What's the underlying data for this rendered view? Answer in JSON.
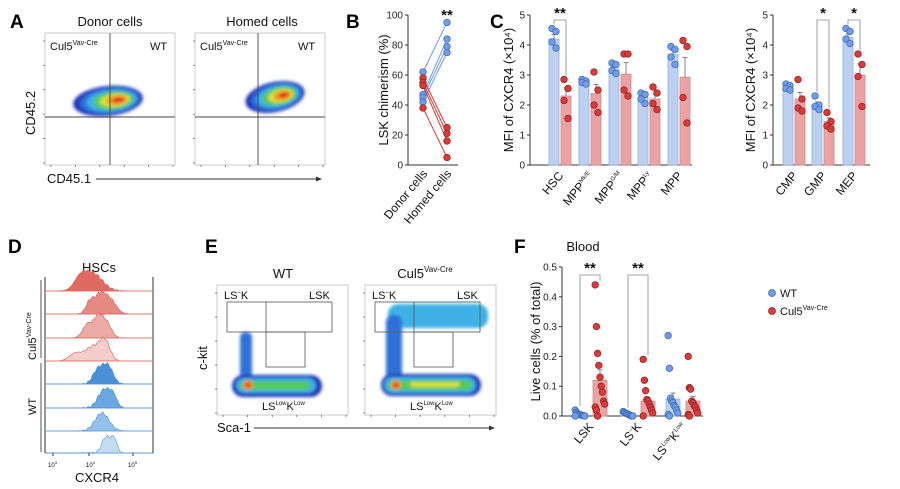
{
  "panel_labels": [
    "A",
    "B",
    "C",
    "D",
    "E",
    "F"
  ],
  "colors": {
    "wt_point": "#6f9de8",
    "wt_bar": "#bcd0f2",
    "ko_point": "#d93a3a",
    "ko_bar": "#eaa3a3"
  },
  "panel_a": {
    "titles": [
      "Donor cells",
      "Homed cells"
    ],
    "quadrant_left": {
      "base": "Cul5",
      "sup": "Vav-Cre"
    },
    "quadrant_right": "WT",
    "xlabel": "CD45.1",
    "ylabel": "CD45.2"
  },
  "panel_d": {
    "title": "HSCs",
    "group_ko": {
      "base": "Cul5",
      "sup": "Vav-Cre"
    },
    "group_wt": "WT",
    "xticks": [
      {
        "base": "10",
        "sup": "3"
      },
      {
        "base": "10",
        "sup": "4"
      },
      {
        "base": "10",
        "sup": "5"
      }
    ],
    "xlabel": "CXCR4"
  },
  "panel_e": {
    "titles": [
      {
        "base": "WT",
        "sup": ""
      },
      {
        "base": "Cul5",
        "sup": "Vav-Cre"
      }
    ],
    "gate_lsnk": {
      "base": "LS",
      "sup": "–",
      "after": "K"
    },
    "gate_lsk": "LSK",
    "gate_low": {
      "a": "LS",
      "sa": "Low",
      "b": "K",
      "sb": "Low"
    },
    "xlabel": "Sca-1",
    "ylabel": "c-kit"
  },
  "legend": {
    "wt": "WT",
    "ko": {
      "base": "Cul5",
      "sup": "Vav-Cre"
    }
  },
  "chart_data": [
    {
      "id": "B",
      "type": "scatter-paired",
      "ylabel": "LSK chimerism (%)",
      "ylim": [
        0,
        100
      ],
      "yticks": [
        0,
        20,
        40,
        60,
        80,
        100
      ],
      "categories": [
        "Donor cells",
        "Homed cells"
      ],
      "significance": "**",
      "pairs": [
        {
          "group": "WT",
          "values": [
            62,
            95
          ]
        },
        {
          "group": "WT",
          "values": [
            47,
            84
          ]
        },
        {
          "group": "WT",
          "values": [
            45,
            79
          ]
        },
        {
          "group": "WT",
          "values": [
            42,
            75
          ]
        },
        {
          "group": "Cul5",
          "values": [
            58,
            25
          ]
        },
        {
          "group": "Cul5",
          "values": [
            55,
            21
          ]
        },
        {
          "group": "Cul5",
          "values": [
            53,
            16
          ]
        },
        {
          "group": "Cul5",
          "values": [
            38,
            5
          ]
        }
      ]
    },
    {
      "id": "C1",
      "type": "bar",
      "ylabel": "MFI of CXCR4 (×10⁴)",
      "ylim": [
        0,
        5
      ],
      "yticks": [
        0,
        1,
        2,
        3,
        4,
        5
      ],
      "categories": [
        {
          "base": "HSC",
          "sup": ""
        },
        {
          "base": "MPP",
          "sup": "Mk/E"
        },
        {
          "base": "MPP",
          "sup": "G/M"
        },
        {
          "base": "MPP",
          "sup": "Ly"
        },
        {
          "base": "MPP",
          "sup": ""
        }
      ],
      "series": [
        {
          "group": "WT",
          "means": [
            4.2,
            2.75,
            3.2,
            2.25,
            3.68
          ],
          "sem": [
            0.15,
            0.04,
            0.08,
            0.08,
            0.13
          ],
          "points": [
            [
              4.55,
              4.45,
              4.1,
              3.9
            ],
            [
              2.85,
              2.8,
              2.75,
              2.7
            ],
            [
              3.4,
              3.35,
              3.15,
              3.05
            ],
            [
              2.4,
              2.35,
              2.2,
              2.05
            ],
            [
              3.95,
              3.85,
              3.6,
              3.35
            ]
          ]
        },
        {
          "group": "Cul5",
          "means": [
            2.3,
            2.38,
            3.03,
            2.2,
            2.93
          ],
          "sem": [
            0.27,
            0.3,
            0.38,
            0.16,
            0.65
          ],
          "points": [
            [
              2.85,
              2.55,
              2.15,
              1.55
            ],
            [
              3.1,
              2.5,
              2.0,
              1.75
            ],
            [
              3.7,
              3.7,
              2.5,
              2.3
            ],
            [
              2.6,
              2.4,
              2.05,
              1.85
            ],
            [
              4.15,
              3.95,
              2.25,
              1.4
            ]
          ]
        }
      ],
      "significance": [
        {
          "category": 0,
          "label": "**"
        }
      ]
    },
    {
      "id": "C2",
      "type": "bar",
      "ylabel": "MFI of CXCR4 (×10⁴)",
      "ylim": [
        0,
        5
      ],
      "yticks": [
        0,
        1,
        2,
        3,
        4,
        5
      ],
      "categories": [
        {
          "base": "CMP",
          "sup": ""
        },
        {
          "base": "GMP",
          "sup": ""
        },
        {
          "base": "MEP",
          "sup": ""
        }
      ],
      "series": [
        {
          "group": "WT",
          "means": [
            2.55,
            2.0,
            4.25
          ],
          "sem": [
            0.05,
            0.1,
            0.12
          ],
          "points": [
            [
              2.7,
              2.65,
              2.55,
              2.5
            ],
            [
              2.3,
              2.0,
              1.95,
              1.85
            ],
            [
              4.55,
              4.45,
              4.2,
              4.05
            ]
          ]
        },
        {
          "group": "Cul5",
          "means": [
            2.2,
            1.45,
            3.0
          ],
          "sem": [
            0.22,
            0.12,
            0.37
          ],
          "points": [
            [
              2.85,
              2.2,
              1.9,
              1.8
            ],
            [
              1.75,
              1.45,
              1.3,
              1.2
            ],
            [
              3.7,
              3.35,
              2.95,
              1.95
            ]
          ]
        }
      ],
      "significance": [
        {
          "category": 1,
          "label": "*"
        },
        {
          "category": 2,
          "label": "*"
        }
      ]
    },
    {
      "id": "F",
      "type": "bar",
      "title": "Blood",
      "ylabel": "Live cells (% of total)",
      "ylim": [
        0,
        0.5
      ],
      "yticks": [
        "0.0",
        "0.1",
        "0.2",
        "0.3",
        "0.4",
        "0.5"
      ],
      "categories": [
        {
          "base": "LSK",
          "sup": ""
        },
        {
          "base": "LS",
          "sup": "–",
          "after": "K"
        },
        {
          "base": "LS",
          "sup": "Low",
          "after": "K",
          "sup2": "Low"
        }
      ],
      "series": [
        {
          "group": "WT",
          "means": [
            0.005,
            0.01,
            0.057
          ],
          "sem": [
            0.002,
            0.002,
            0.02
          ],
          "points": [
            [
              0.02,
              0.012,
              0.008,
              0.006,
              0.004,
              0.003,
              0.002,
              0.001,
              0.0,
              0.0
            ],
            [
              0.015,
              0.012,
              0.01,
              0.008,
              0.006,
              0.004,
              0.002,
              0.0,
              0.0
            ],
            [
              0.27,
              0.16,
              0.06,
              0.05,
              0.045,
              0.035,
              0.03,
              0.02,
              0.01,
              0.005,
              0.0
            ]
          ]
        },
        {
          "group": "Cul5",
          "means": [
            0.12,
            0.05,
            0.05
          ],
          "sem": [
            0.035,
            0.013,
            0.015
          ],
          "points": [
            [
              0.44,
              0.3,
              0.21,
              0.17,
              0.13,
              0.1,
              0.08,
              0.05,
              0.04,
              0.03,
              0.02,
              0.0
            ],
            [
              0.19,
              0.12,
              0.085,
              0.055,
              0.05,
              0.04,
              0.03,
              0.02,
              0.01,
              0.0
            ],
            [
              0.2,
              0.095,
              0.09,
              0.05,
              0.045,
              0.035,
              0.03,
              0.02,
              0.01,
              0.005,
              0.0
            ]
          ]
        }
      ],
      "significance": [
        {
          "category": 0,
          "label": "**"
        },
        {
          "category": 1,
          "label": "**"
        }
      ]
    }
  ]
}
